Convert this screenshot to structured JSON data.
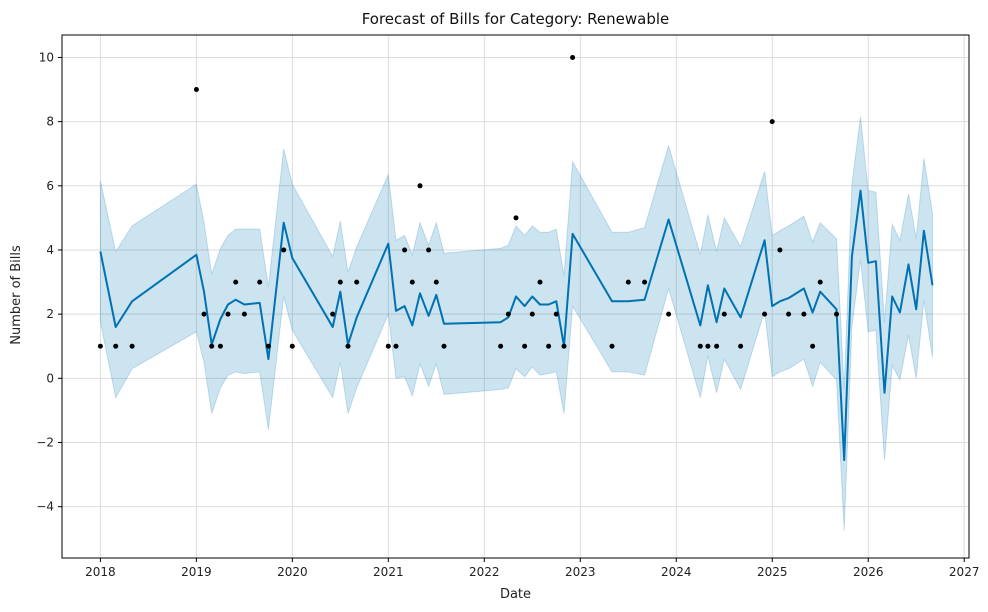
{
  "chart_data": {
    "type": "line",
    "title": "Forecast of Bills for Category: Renewable",
    "xlabel": "Date",
    "ylabel": "Number of Bills",
    "x_ticks": [
      "2018",
      "2019",
      "2020",
      "2021",
      "2022",
      "2023",
      "2024",
      "2025",
      "2026",
      "2027"
    ],
    "y_ticks": [
      -4,
      -2,
      0,
      2,
      4,
      6,
      8,
      10
    ],
    "xlim": [
      2017.6,
      2027.05
    ],
    "ylim": [
      -5.6,
      10.7
    ],
    "grid": true,
    "legend": "none",
    "colors": {
      "forecast_line": "#0072b2",
      "uncertainty_band": "#0072b2",
      "observed_points": "#000000",
      "grid": "#dddddd"
    },
    "observed": {
      "x": [
        2018.0,
        2018.16,
        2018.33,
        2019.0,
        2019.08,
        2019.16,
        2019.25,
        2019.33,
        2019.41,
        2019.5,
        2019.66,
        2019.75,
        2019.91,
        2020.0,
        2020.42,
        2020.5,
        2020.58,
        2020.67,
        2021.0,
        2021.08,
        2021.17,
        2021.25,
        2021.33,
        2021.42,
        2021.5,
        2021.58,
        2022.17,
        2022.25,
        2022.33,
        2022.42,
        2022.5,
        2022.58,
        2022.67,
        2022.75,
        2022.83,
        2022.92,
        2023.33,
        2023.5,
        2023.67,
        2023.92,
        2024.25,
        2024.33,
        2024.42,
        2024.5,
        2024.67,
        2024.92,
        2025.0,
        2025.08,
        2025.17,
        2025.33,
        2025.42,
        2025.5,
        2025.67
      ],
      "y": [
        1,
        1,
        1,
        9,
        2,
        1,
        1,
        2,
        3,
        2,
        3,
        1,
        4,
        1,
        2,
        3,
        1,
        3,
        1,
        1,
        4,
        3,
        6,
        4,
        3,
        1,
        1,
        2,
        5,
        1,
        2,
        3,
        1,
        2,
        1,
        10,
        1,
        3,
        3,
        2,
        1,
        1,
        1,
        2,
        1,
        2,
        8,
        4,
        2,
        2,
        1,
        3,
        2
      ]
    },
    "forecast": {
      "x": [
        2018.0,
        2018.16,
        2018.33,
        2019.0,
        2019.08,
        2019.16,
        2019.25,
        2019.33,
        2019.41,
        2019.5,
        2019.66,
        2019.75,
        2019.91,
        2020.0,
        2020.42,
        2020.5,
        2020.58,
        2020.67,
        2021.0,
        2021.08,
        2021.17,
        2021.25,
        2021.33,
        2021.42,
        2021.5,
        2021.58,
        2022.17,
        2022.25,
        2022.33,
        2022.42,
        2022.5,
        2022.58,
        2022.67,
        2022.75,
        2022.83,
        2022.92,
        2023.33,
        2023.5,
        2023.67,
        2023.92,
        2024.25,
        2024.33,
        2024.42,
        2024.5,
        2024.67,
        2024.92,
        2025.0,
        2025.08,
        2025.17,
        2025.33,
        2025.42,
        2025.5,
        2025.67,
        2025.75,
        2025.83,
        2025.92,
        2026.0,
        2026.08,
        2026.17,
        2026.25,
        2026.33,
        2026.42,
        2026.5,
        2026.58,
        2026.67
      ],
      "yhat": [
        3.95,
        1.6,
        2.4,
        3.85,
        2.7,
        1.05,
        1.85,
        2.3,
        2.45,
        2.3,
        2.35,
        0.6,
        4.85,
        3.75,
        1.6,
        2.7,
        1.05,
        1.9,
        4.2,
        2.1,
        2.25,
        1.65,
        2.65,
        1.95,
        2.6,
        1.7,
        1.75,
        1.9,
        2.55,
        2.25,
        2.55,
        2.3,
        2.3,
        2.4,
        1.0,
        4.5,
        2.4,
        2.4,
        2.45,
        4.95,
        1.65,
        2.9,
        1.75,
        2.8,
        1.9,
        4.3,
        2.25,
        2.4,
        2.5,
        2.8,
        2.05,
        2.7,
        2.15,
        -2.55,
        3.8,
        5.85,
        3.6,
        3.65,
        -0.45,
        2.55,
        2.05,
        3.55,
        2.15,
        4.6,
        2.9
      ],
      "lower": [
        1.75,
        -0.6,
        0.3,
        1.45,
        0.5,
        -1.1,
        -0.3,
        0.1,
        0.2,
        0.15,
        0.2,
        -1.6,
        2.55,
        1.5,
        -0.6,
        0.5,
        -1.1,
        -0.3,
        2.0,
        0.0,
        0.05,
        -0.55,
        0.45,
        -0.25,
        0.45,
        -0.5,
        -0.35,
        -0.3,
        0.3,
        0.05,
        0.35,
        0.1,
        0.15,
        0.2,
        -1.1,
        2.25,
        0.2,
        0.2,
        0.1,
        2.8,
        -0.6,
        0.7,
        -0.45,
        0.6,
        -0.35,
        2.1,
        0.05,
        0.2,
        0.3,
        0.6,
        -0.25,
        0.5,
        -0.05,
        -4.75,
        1.6,
        3.7,
        1.45,
        1.5,
        -2.55,
        0.4,
        -0.05,
        1.35,
        0.0,
        2.45,
        0.65
      ],
      "upper": [
        6.15,
        3.95,
        4.75,
        6.05,
        4.85,
        3.25,
        4.05,
        4.45,
        4.65,
        4.65,
        4.65,
        2.85,
        7.15,
        6.05,
        3.8,
        4.9,
        3.3,
        4.1,
        6.35,
        4.3,
        4.45,
        3.85,
        4.85,
        4.15,
        4.85,
        3.9,
        4.05,
        4.15,
        4.75,
        4.45,
        4.75,
        4.55,
        4.55,
        4.65,
        3.2,
        6.75,
        4.55,
        4.55,
        4.7,
        7.25,
        3.85,
        5.1,
        3.95,
        5.0,
        4.1,
        6.45,
        4.45,
        4.6,
        4.75,
        5.05,
        4.25,
        4.85,
        4.35,
        -0.35,
        6.05,
        8.15,
        5.85,
        5.8,
        1.75,
        4.8,
        4.3,
        5.75,
        4.35,
        6.85,
        5.15
      ]
    }
  }
}
